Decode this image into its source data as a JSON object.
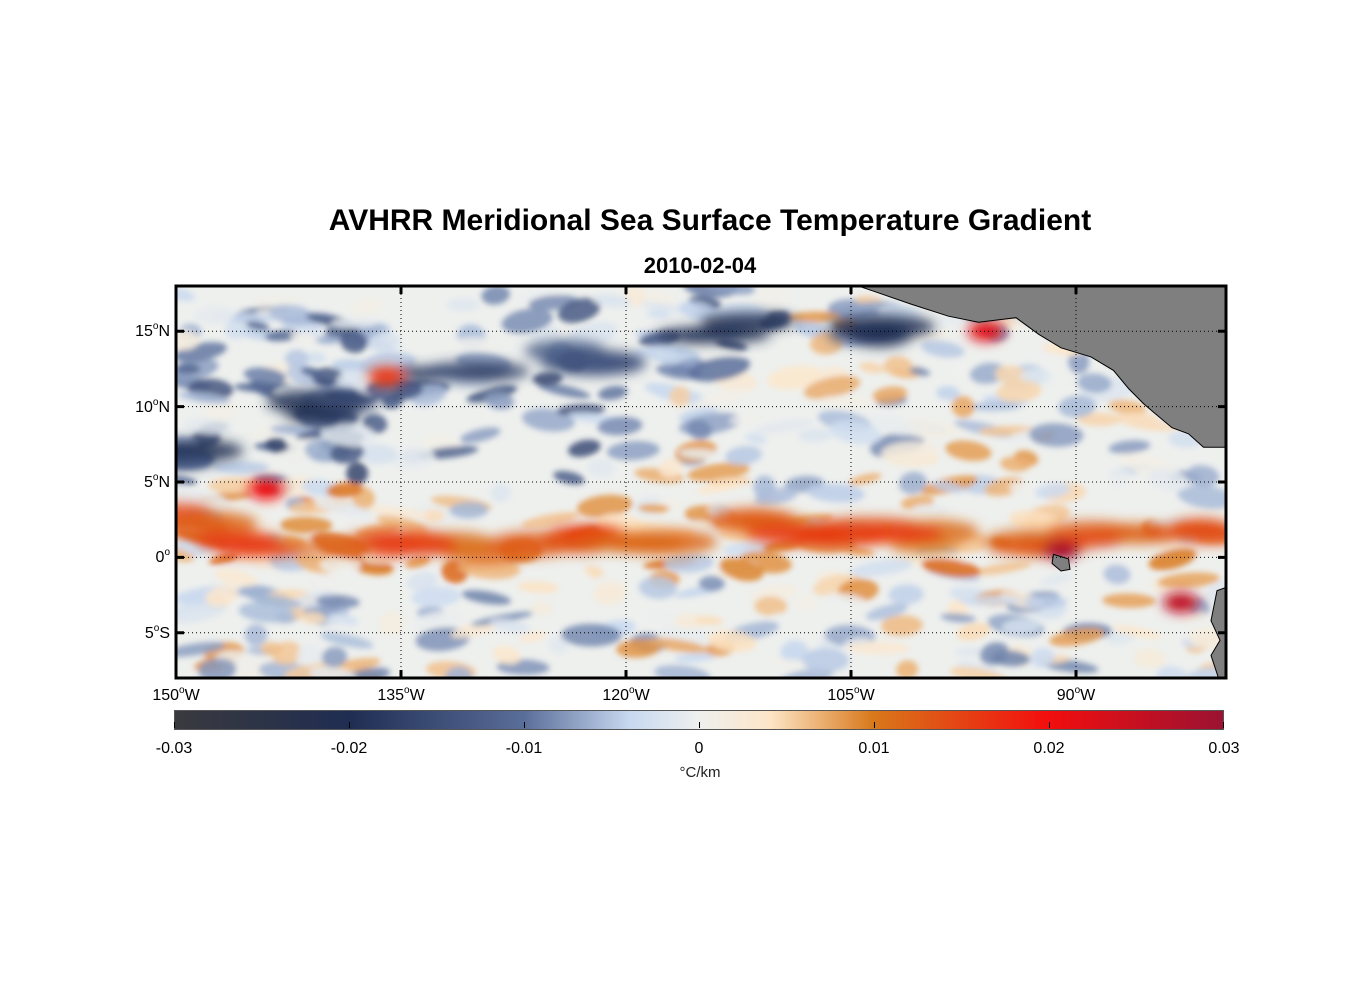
{
  "figure": {
    "title": "AVHRR Meridional Sea Surface Temperature Gradient",
    "date": "2010-02-04"
  },
  "map_extent": {
    "lon_min": -150,
    "lon_max": -80,
    "lat_min": -8,
    "lat_max": 18
  },
  "grid": {
    "style": "dotted",
    "visible": true
  },
  "y_ticks": [
    {
      "lat": 15,
      "num": "15",
      "deg": "o",
      "hemi": "N"
    },
    {
      "lat": 10,
      "num": "10",
      "deg": "o",
      "hemi": "N"
    },
    {
      "lat": 5,
      "num": "5",
      "deg": "o",
      "hemi": "N"
    },
    {
      "lat": 0,
      "num": "0",
      "deg": "o",
      "hemi": ""
    },
    {
      "lat": -5,
      "num": "5",
      "deg": "o",
      "hemi": "S"
    }
  ],
  "x_ticks": [
    {
      "lon": -150,
      "num": "150",
      "deg": "o",
      "hemi": "W"
    },
    {
      "lon": -135,
      "num": "135",
      "deg": "o",
      "hemi": "W"
    },
    {
      "lon": -120,
      "num": "120",
      "deg": "o",
      "hemi": "W"
    },
    {
      "lon": -105,
      "num": "105",
      "deg": "o",
      "hemi": "W"
    },
    {
      "lon": -90,
      "num": "90",
      "deg": "o",
      "hemi": "W"
    }
  ],
  "colorbar": {
    "unit": "°C/km",
    "range": [
      -0.03,
      0.03
    ],
    "ticks": [
      {
        "value": -0.03,
        "label": "-0.03"
      },
      {
        "value": -0.02,
        "label": "-0.02"
      },
      {
        "value": -0.01,
        "label": "-0.01"
      },
      {
        "value": 0,
        "label": "0"
      },
      {
        "value": 0.01,
        "label": "0.01"
      },
      {
        "value": 0.02,
        "label": "0.02"
      },
      {
        "value": 0.03,
        "label": "0.03"
      }
    ],
    "colormap": [
      {
        "value": -0.03,
        "color": "#3a3a3e"
      },
      {
        "value": -0.02,
        "color": "#1f2d52"
      },
      {
        "value": -0.01,
        "color": "#5a6e9a"
      },
      {
        "value": -0.004,
        "color": "#c7d8f0"
      },
      {
        "value": 0,
        "color": "#eef0ee"
      },
      {
        "value": 0.004,
        "color": "#fde6c8"
      },
      {
        "value": 0.01,
        "color": "#d8781a"
      },
      {
        "value": 0.02,
        "color": "#f20e0e"
      },
      {
        "value": 0.03,
        "color": "#9b1232"
      }
    ]
  },
  "colors": {
    "land": "#7f7f7f",
    "frame": "#000000",
    "grid": "#000000"
  },
  "field_features": [
    {
      "name": "equatorial-warm-front",
      "lon_start": -150,
      "lon_end": -81,
      "lat_path": [
        2.5,
        1.0,
        0.5,
        0.5,
        0.8,
        1.5,
        2.2,
        2.0,
        1.2,
        0.8,
        1.5,
        2.0
      ],
      "value": 0.014
    },
    {
      "name": "northern-negative-belt",
      "lon_start": -150,
      "lon_end": -105,
      "lat_path": [
        7,
        10,
        12,
        13,
        15,
        15
      ],
      "value": -0.018
    },
    {
      "name": "warm-patch-a",
      "lon": -144,
      "lat": 4.5,
      "value": 0.02
    },
    {
      "name": "warm-patch-b",
      "lon": -96,
      "lat": 15,
      "value": 0.022
    },
    {
      "name": "warm-patch-c",
      "lon": -83,
      "lat": -3,
      "value": 0.026
    },
    {
      "name": "warm-patch-d",
      "lon": -91,
      "lat": 0.5,
      "value": 0.028
    },
    {
      "name": "warm-patch-e",
      "lon": -136,
      "lat": 12,
      "value": 0.016
    }
  ]
}
